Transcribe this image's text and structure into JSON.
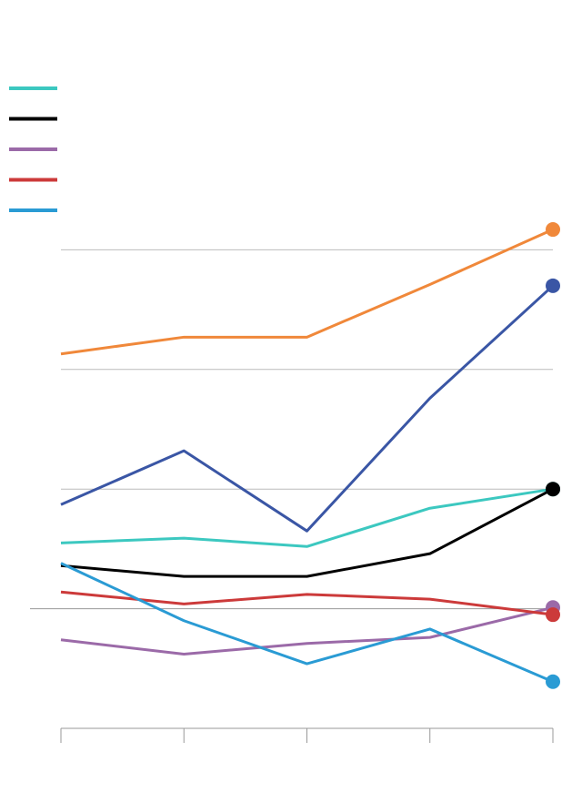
{
  "chart_data": {
    "type": "line",
    "categories": [
      null,
      null,
      null,
      null,
      null
    ],
    "series": [
      {
        "color": "#f0883a",
        "values": [
          21.3,
          22.7,
          22.7,
          27.1,
          31.7
        ],
        "legend": false
      },
      {
        "color": "#3a56a5",
        "values": [
          8.7,
          13.2,
          6.5,
          17.6,
          27.0
        ],
        "legend": false
      },
      {
        "color": "#3cc8c0",
        "values": [
          5.5,
          5.9,
          5.2,
          8.4,
          10.0
        ],
        "legend": true
      },
      {
        "color": "#000000",
        "values": [
          3.6,
          2.7,
          2.7,
          4.6,
          10.0
        ],
        "legend": true
      },
      {
        "color": "#9b6aa8",
        "values": [
          -2.6,
          -3.8,
          -2.9,
          -2.4,
          0.1
        ],
        "legend": true
      },
      {
        "color": "#cc3a3a",
        "values": [
          1.4,
          0.4,
          1.2,
          0.8,
          -0.5
        ],
        "legend": true
      },
      {
        "color": "#2a9bd4",
        "values": [
          3.8,
          -1.0,
          -4.6,
          -1.7,
          -6.1
        ],
        "legend": true
      }
    ],
    "ylim": [
      -10,
      35
    ],
    "yticks": [
      0,
      10,
      20,
      30
    ],
    "grid": true,
    "end_markers": true
  }
}
